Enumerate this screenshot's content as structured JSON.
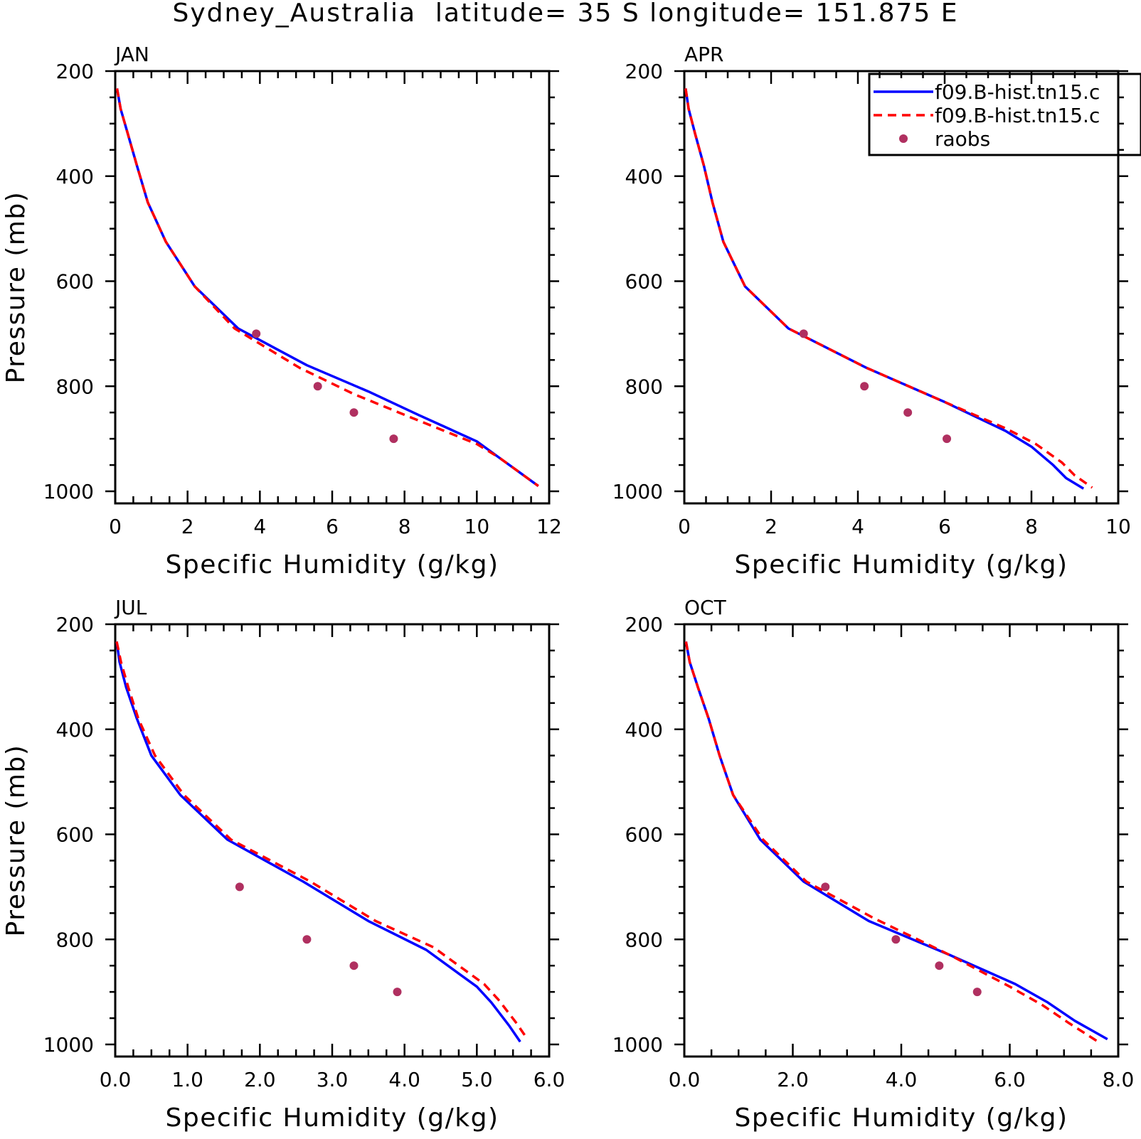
{
  "figure": {
    "title": "Sydney_Australia  latitude= 35 S longitude= 151.875 E"
  },
  "legend": {
    "placement": "top-right of APR panel",
    "entries": [
      {
        "label": "f09.B-hist.tn15.c",
        "color": "#0000ff",
        "style": "solid"
      },
      {
        "label": "f09.B-hist.tn15.c",
        "color": "#ff0000",
        "style": "dashed"
      },
      {
        "label": "raobs",
        "color": "#b03060",
        "style": "marker"
      }
    ]
  },
  "chart_data": [
    {
      "type": "line",
      "panel": "JAN",
      "title": "JAN",
      "xlabel": "Specific Humidity (g/kg)",
      "ylabel": "Pressure (mb)",
      "xlim": [
        0,
        12
      ],
      "ylim": [
        1000,
        200
      ],
      "y_reversed": true,
      "x_ticks": [
        0,
        2,
        4,
        6,
        8,
        10,
        12
      ],
      "x_tick_labels": [
        "0",
        "2",
        "4",
        "6",
        "8",
        "10",
        "12"
      ],
      "y_ticks": [
        200,
        400,
        600,
        800,
        1000
      ],
      "y_tick_labels": [
        "200",
        "400",
        "600",
        "800",
        "1000"
      ],
      "grid": false,
      "series": [
        {
          "name": "f09.B-hist.tn15.c",
          "color": "#0000ff",
          "style": "solid",
          "x": [
            0.05,
            0.15,
            0.35,
            0.6,
            0.9,
            1.4,
            2.2,
            3.4,
            5.3,
            7.0,
            8.4,
            10.0,
            10.6,
            11.1,
            11.5,
            11.7
          ],
          "y": [
            233,
            272,
            320,
            380,
            450,
            525,
            610,
            690,
            760,
            810,
            855,
            905,
            935,
            960,
            980,
            990
          ]
        },
        {
          "name": "f09.B-hist.tn15.c",
          "color": "#ff0000",
          "style": "dashed",
          "x": [
            0.05,
            0.15,
            0.35,
            0.6,
            0.9,
            1.4,
            2.2,
            3.3,
            5.1,
            6.6,
            8.2,
            10.0,
            10.6,
            11.1,
            11.5,
            11.7
          ],
          "y": [
            233,
            272,
            320,
            380,
            450,
            525,
            610,
            690,
            765,
            815,
            860,
            910,
            935,
            960,
            980,
            990
          ]
        },
        {
          "name": "raobs",
          "color": "#b03060",
          "style": "marker",
          "x": [
            3.9,
            5.6,
            6.6,
            7.7
          ],
          "y": [
            700,
            800,
            850,
            900
          ]
        }
      ]
    },
    {
      "type": "line",
      "panel": "APR",
      "title": "APR",
      "xlabel": "Specific Humidity (g/kg)",
      "ylabel": "",
      "xlim": [
        0,
        10
      ],
      "ylim": [
        1000,
        200
      ],
      "y_reversed": true,
      "x_ticks": [
        0,
        2,
        4,
        6,
        8,
        10
      ],
      "x_tick_labels": [
        "0",
        "2",
        "4",
        "6",
        "8",
        "10"
      ],
      "y_ticks": [
        200,
        400,
        600,
        800,
        1000
      ],
      "y_tick_labels": [
        "200",
        "400",
        "600",
        "800",
        "1000"
      ],
      "grid": false,
      "series": [
        {
          "name": "f09.B-hist.tn15.c",
          "color": "#0000ff",
          "style": "solid",
          "x": [
            0.03,
            0.1,
            0.25,
            0.45,
            0.65,
            0.9,
            1.4,
            2.4,
            4.2,
            6.0,
            7.4,
            8.0,
            8.5,
            8.8,
            9.2
          ],
          "y": [
            233,
            272,
            320,
            380,
            450,
            525,
            610,
            690,
            765,
            830,
            885,
            915,
            950,
            975,
            995
          ]
        },
        {
          "name": "f09.B-hist.tn15.c",
          "color": "#ff0000",
          "style": "dashed",
          "x": [
            0.03,
            0.1,
            0.25,
            0.45,
            0.65,
            0.9,
            1.4,
            2.4,
            4.2,
            6.0,
            7.4,
            8.1,
            8.7,
            9.0,
            9.4
          ],
          "y": [
            233,
            272,
            320,
            380,
            450,
            525,
            610,
            690,
            765,
            830,
            880,
            910,
            945,
            970,
            993
          ]
        },
        {
          "name": "raobs",
          "color": "#b03060",
          "style": "marker",
          "x": [
            2.75,
            4.15,
            5.15,
            6.05
          ],
          "y": [
            700,
            800,
            850,
            900
          ]
        }
      ]
    },
    {
      "type": "line",
      "panel": "JUL",
      "title": "JUL",
      "xlabel": "Specific Humidity (g/kg)",
      "ylabel": "Pressure (mb)",
      "xlim": [
        0,
        6
      ],
      "ylim": [
        1000,
        200
      ],
      "y_reversed": true,
      "x_ticks": [
        0,
        1,
        2,
        3,
        4,
        5,
        6
      ],
      "x_tick_labels": [
        "0.0",
        "1.0",
        "2.0",
        "3.0",
        "4.0",
        "5.0",
        "6.0"
      ],
      "y_ticks": [
        200,
        400,
        600,
        800,
        1000
      ],
      "y_tick_labels": [
        "200",
        "400",
        "600",
        "800",
        "1000"
      ],
      "grid": false,
      "series": [
        {
          "name": "f09.B-hist.tn15.c",
          "color": "#0000ff",
          "style": "solid",
          "x": [
            0.02,
            0.06,
            0.15,
            0.3,
            0.5,
            0.9,
            1.55,
            2.6,
            3.5,
            4.3,
            4.75,
            5.0,
            5.2,
            5.45,
            5.6
          ],
          "y": [
            233,
            272,
            320,
            380,
            450,
            525,
            610,
            690,
            765,
            820,
            865,
            890,
            920,
            965,
            995
          ]
        },
        {
          "name": "f09.B-hist.tn15.c",
          "color": "#ff0000",
          "style": "dashed",
          "x": [
            0.02,
            0.08,
            0.18,
            0.32,
            0.55,
            0.95,
            1.6,
            2.7,
            3.6,
            4.4,
            4.85,
            5.1,
            5.3,
            5.55,
            5.7
          ],
          "y": [
            233,
            272,
            320,
            380,
            450,
            525,
            610,
            690,
            765,
            815,
            860,
            885,
            915,
            960,
            990
          ]
        },
        {
          "name": "raobs",
          "color": "#b03060",
          "style": "marker",
          "x": [
            1.72,
            2.65,
            3.3,
            3.9
          ],
          "y": [
            700,
            800,
            850,
            900
          ]
        }
      ]
    },
    {
      "type": "line",
      "panel": "OCT",
      "title": "OCT",
      "xlabel": "Specific Humidity (g/kg)",
      "ylabel": "",
      "xlim": [
        0,
        8
      ],
      "ylim": [
        1000,
        200
      ],
      "y_reversed": true,
      "x_ticks": [
        0,
        2,
        4,
        6,
        8
      ],
      "x_tick_labels": [
        "0.0",
        "2.0",
        "4.0",
        "6.0",
        "8.0"
      ],
      "y_ticks": [
        200,
        400,
        600,
        800,
        1000
      ],
      "y_tick_labels": [
        "200",
        "400",
        "600",
        "800",
        "1000"
      ],
      "grid": false,
      "series": [
        {
          "name": "f09.B-hist.tn15.c",
          "color": "#0000ff",
          "style": "solid",
          "x": [
            0.03,
            0.1,
            0.25,
            0.45,
            0.65,
            0.9,
            1.4,
            2.2,
            3.4,
            4.9,
            6.1,
            6.7,
            7.2,
            7.8
          ],
          "y": [
            233,
            272,
            320,
            380,
            450,
            525,
            610,
            690,
            765,
            830,
            885,
            920,
            955,
            990
          ]
        },
        {
          "name": "f09.B-hist.tn15.c",
          "color": "#ff0000",
          "style": "dashed",
          "x": [
            0.03,
            0.1,
            0.25,
            0.45,
            0.65,
            0.9,
            1.45,
            2.25,
            3.5,
            4.9,
            6.0,
            6.6,
            7.1,
            7.6
          ],
          "y": [
            233,
            272,
            320,
            380,
            450,
            525,
            610,
            690,
            760,
            830,
            890,
            925,
            960,
            993
          ]
        },
        {
          "name": "raobs",
          "color": "#b03060",
          "style": "marker",
          "x": [
            2.6,
            3.9,
            4.7,
            5.4
          ],
          "y": [
            700,
            800,
            850,
            900
          ]
        }
      ]
    }
  ]
}
